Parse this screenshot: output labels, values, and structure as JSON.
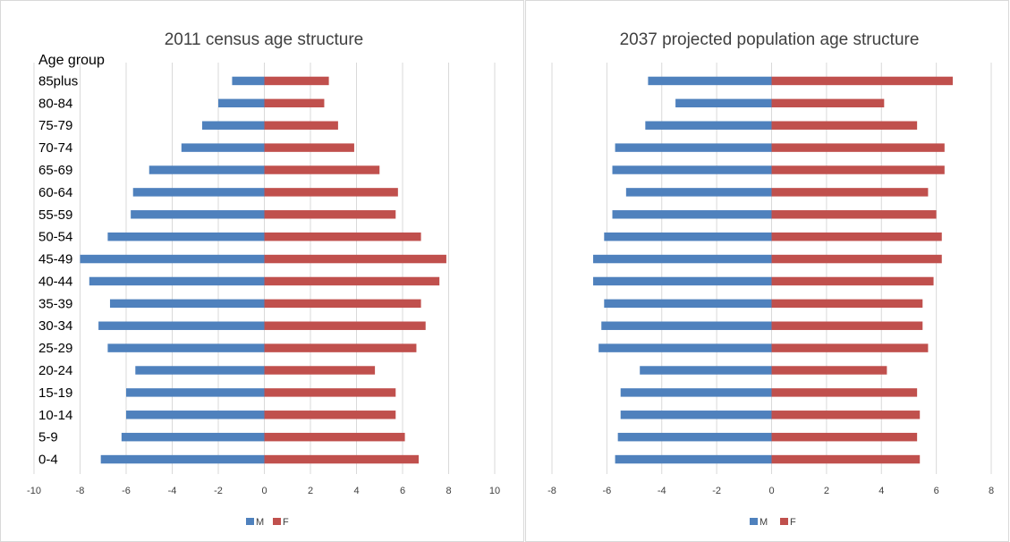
{
  "colors": {
    "male": "#4f81bd",
    "female": "#c0504d",
    "frame": "#d9d9d9",
    "grid": "#d9d9d9"
  },
  "chart_data": [
    {
      "type": "bar",
      "orientation": "horizontal",
      "title": "2011 census age structure",
      "ylabel": "Age group",
      "xlabel": "",
      "categories": [
        "0-4",
        "5-9",
        "10-14",
        "15-19",
        "20-24",
        "25-29",
        "30-34",
        "35-39",
        "40-44",
        "45-49",
        "50-54",
        "55-59",
        "60-64",
        "65-69",
        "70-74",
        "75-79",
        "80-84",
        "85plus"
      ],
      "xlim": [
        -10,
        10
      ],
      "x_ticks": [
        -10,
        -8,
        -6,
        -4,
        -2,
        0,
        2,
        4,
        6,
        8,
        10
      ],
      "x_tick_labels": [
        "-10",
        "-8",
        "-6",
        "-4",
        "-2",
        "0",
        "2",
        "4",
        "6",
        "8",
        "10"
      ],
      "grid": true,
      "legend": "bottom",
      "series": [
        {
          "name": "M",
          "color": "#4f81bd",
          "values": [
            -7.1,
            -6.2,
            -6.0,
            -6.0,
            -5.6,
            -6.8,
            -7.2,
            -6.7,
            -7.6,
            -8.0,
            -6.8,
            -5.8,
            -5.7,
            -5.0,
            -3.6,
            -2.7,
            -2.0,
            -1.4
          ]
        },
        {
          "name": "F",
          "color": "#c0504d",
          "values": [
            6.7,
            6.1,
            5.7,
            5.7,
            4.8,
            6.6,
            7.0,
            6.8,
            7.6,
            7.9,
            6.8,
            5.7,
            5.8,
            5.0,
            3.9,
            3.2,
            2.6,
            2.8
          ]
        }
      ]
    },
    {
      "type": "bar",
      "orientation": "horizontal",
      "title": "2037 projected population age structure",
      "ylabel": "",
      "xlabel": "",
      "categories": [
        "0-4",
        "5-9",
        "10-14",
        "15-19",
        "20-24",
        "25-29",
        "30-34",
        "35-39",
        "40-44",
        "45-49",
        "50-54",
        "55-59",
        "60-64",
        "65-69",
        "70-74",
        "75-79",
        "80-84",
        "85plus"
      ],
      "xlim": [
        -8,
        8
      ],
      "x_ticks": [
        -8,
        -6,
        -4,
        -2,
        0,
        2,
        4,
        6,
        8
      ],
      "x_tick_labels": [
        "-8",
        "-6",
        "-4",
        "-2",
        "0",
        "2",
        "4",
        "6",
        "8"
      ],
      "grid": true,
      "legend": "bottom",
      "series": [
        {
          "name": "M",
          "color": "#4f81bd",
          "values": [
            -5.7,
            -5.6,
            -5.5,
            -5.5,
            -4.8,
            -6.3,
            -6.2,
            -6.1,
            -6.5,
            -6.5,
            -6.1,
            -5.8,
            -5.3,
            -5.8,
            -5.7,
            -4.6,
            -3.5,
            -4.5
          ]
        },
        {
          "name": "F",
          "color": "#c0504d",
          "values": [
            5.4,
            5.3,
            5.4,
            5.3,
            4.2,
            5.7,
            5.5,
            5.5,
            5.9,
            6.2,
            6.2,
            6.0,
            5.7,
            6.3,
            6.3,
            5.3,
            4.1,
            6.6
          ]
        }
      ]
    }
  ]
}
